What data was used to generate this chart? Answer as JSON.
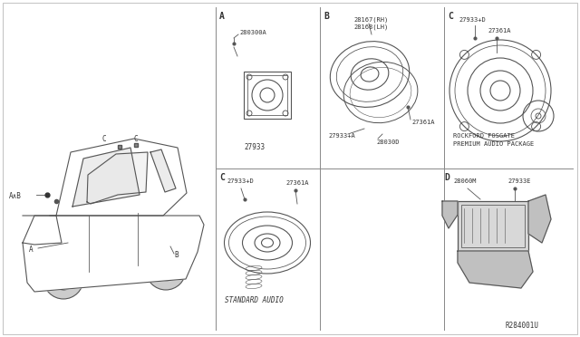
{
  "bg_color": "#f0f0f0",
  "line_color": "#555555",
  "text_color": "#333333",
  "ref_code": "R284001U",
  "part_labels": {
    "A_screw": "280300A",
    "A_speaker": "27933",
    "B_speaker_rh": "28167(RH)",
    "B_speaker_lh": "28168(LH)",
    "B_bolt": "27361A",
    "B_speaker2": "27933+A",
    "B_mount": "28030D",
    "C_top_screw": "27933+D",
    "C_top_bolt": "27361A",
    "C_bot_speaker": "27933+D",
    "C_bot_bolt": "27361A",
    "D_amp": "28060M",
    "D_screw": "27933E"
  },
  "special_text": {
    "rockford": "ROCKFORD FOSGATE",
    "premium": "PREMIUM AUDIO PACKAGE",
    "standard": "STANDARD AUDIO"
  }
}
